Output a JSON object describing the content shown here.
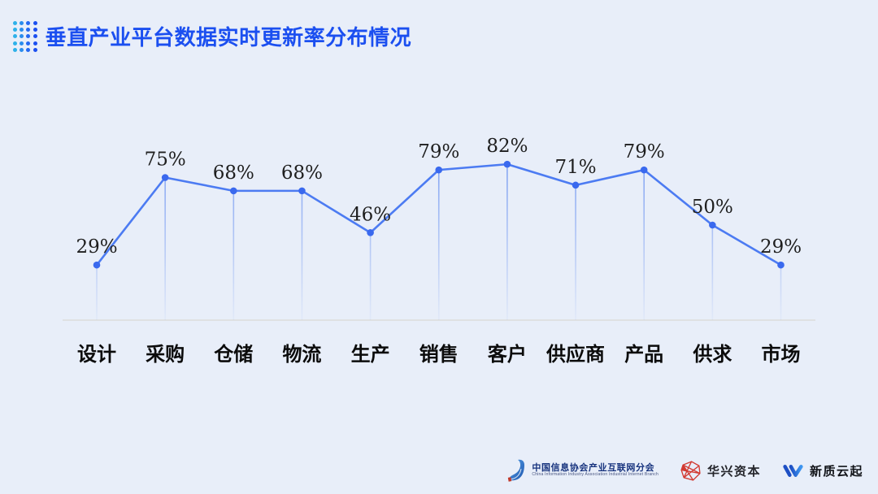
{
  "title": "垂直产业平台数据实时更新率分布情况",
  "colors": {
    "background": "#e8eef9",
    "title_blue": "#1b4ff0",
    "line": "#4c7bf2",
    "dot": "#3a69ee",
    "value_label": "#1e1e1e",
    "category_label": "#0b0b0b",
    "baseline": "#d9d9d4",
    "drop_line": "#5d88f0",
    "huaxing_red": "#d23a32",
    "xinzhi_blue": "#2e7de8",
    "association_navy": "#17337e"
  },
  "icons": {
    "title_dots": "dots-grid-icon",
    "association": "association-emblem-icon",
    "huaxing": "huaxing-diamond-icon",
    "xinzhi": "xinzhi-w-icon"
  },
  "chart_data": {
    "type": "line",
    "title": "垂直产业平台数据实时更新率分布情况",
    "categories": [
      "设计",
      "采购",
      "仓储",
      "物流",
      "生产",
      "销售",
      "客户",
      "供应商",
      "产品",
      "供求",
      "市场"
    ],
    "values": [
      29,
      75,
      68,
      68,
      46,
      79,
      82,
      71,
      79,
      50,
      29
    ],
    "value_labels": [
      "29%",
      "75%",
      "68%",
      "68%",
      "46%",
      "79%",
      "82%",
      "71%",
      "79%",
      "50%",
      "29%"
    ],
    "unit": "%",
    "xlabel": "",
    "ylabel": "",
    "ylim": [
      0,
      100
    ],
    "grid": false,
    "legend": "none",
    "markers": true,
    "drop_lines": true
  },
  "footer": {
    "association": {
      "name_cn": "中国信息协会产业互联网分会",
      "name_en": "China Information Industry Association Industrial Internet Branch"
    },
    "huaxing": {
      "label": "华兴资本"
    },
    "xinzhi": {
      "label": "新质云起"
    }
  }
}
